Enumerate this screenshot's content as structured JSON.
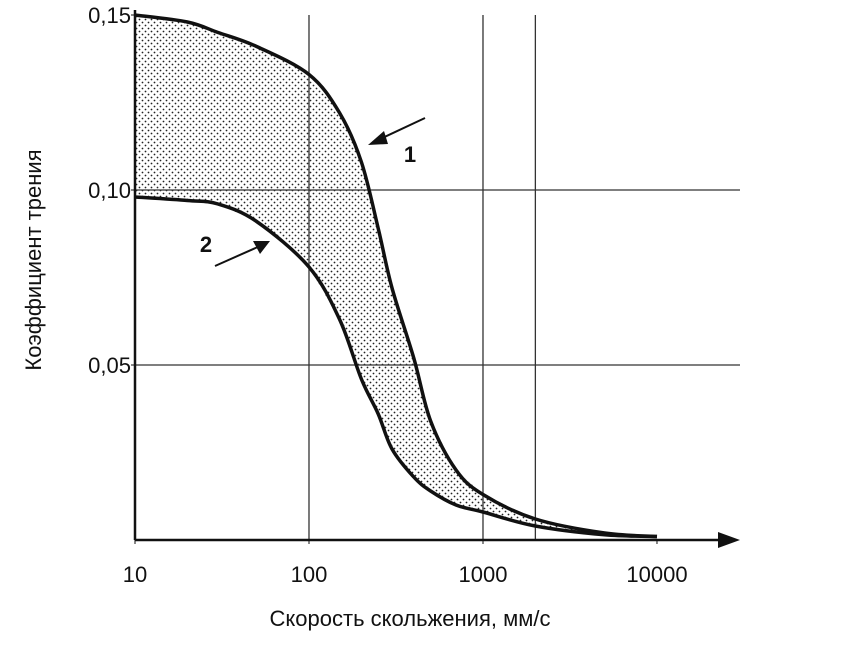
{
  "chart_data": {
    "type": "line",
    "x_label": "Скорость скольжения, мм/с",
    "y_label": "Коэффициент трения",
    "x": [
      10,
      20,
      30,
      50,
      100,
      150,
      200,
      250,
      300,
      400,
      500,
      700,
      1000,
      2000,
      5000,
      10000
    ],
    "series": [
      {
        "name": "1",
        "color": "#111111",
        "values": [
          0.15,
          0.148,
          0.145,
          0.141,
          0.133,
          0.122,
          0.108,
          0.089,
          0.072,
          0.052,
          0.034,
          0.02,
          0.013,
          0.006,
          0.002,
          0.001
        ]
      },
      {
        "name": "2",
        "color": "#111111",
        "values": [
          0.098,
          0.097,
          0.096,
          0.091,
          0.078,
          0.063,
          0.046,
          0.036,
          0.026,
          0.018,
          0.014,
          0.01,
          0.008,
          0.004,
          0.0015,
          0.001
        ]
      }
    ],
    "xscale": "log",
    "xlim": [
      10,
      30000
    ],
    "xticks": [
      10,
      100,
      1000,
      10000
    ],
    "xgrid": [
      100,
      1000,
      2000
    ],
    "ylim": [
      0,
      0.15
    ],
    "yticks": [
      {
        "value": 0.05,
        "label": "0,05"
      },
      {
        "value": 0.1,
        "label": "0,10"
      },
      {
        "value": 0.15,
        "label": "0,15"
      }
    ],
    "ygrid": [
      0.05,
      0.1
    ],
    "annotations": [
      "1",
      "2"
    ]
  }
}
